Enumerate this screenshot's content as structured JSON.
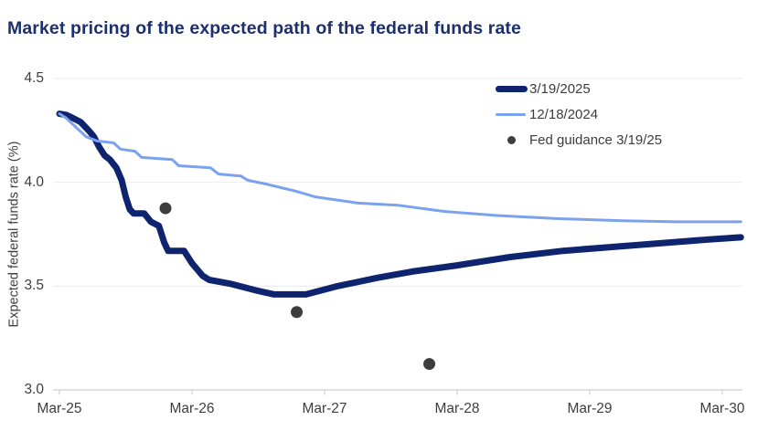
{
  "title": "Market pricing of the expected path of the federal funds rate",
  "colors": {
    "title_navy": "#1c2f6e",
    "series_dark_navy": "#0e246e",
    "series_light_blue": "#7aa2ee",
    "guidance_dot_gray": "#3d3d3d",
    "tick_text": "#3d3d3d",
    "gridline": "#ebebeb",
    "axis_line": "#cfcfcf",
    "background": "#ffffff"
  },
  "chart_data": {
    "type": "line",
    "title": "Market pricing of the expected path of the federal funds rate",
    "xlabel": "",
    "ylabel": "Expected federal funds rate (%)",
    "ylim": [
      3.0,
      4.5
    ],
    "x_unit": "years since Mar-2025",
    "grid": "horizontal gridlines at each y tick, light gray",
    "legend_position": "top-right inside plot area",
    "x_axis": {
      "ticks": [
        {
          "t": 0,
          "label": "Mar-25"
        },
        {
          "t": 1,
          "label": "Mar-26"
        },
        {
          "t": 2,
          "label": "Mar-27"
        },
        {
          "t": 3,
          "label": "Mar-28"
        },
        {
          "t": 4,
          "label": "Mar-29"
        },
        {
          "t": 5,
          "label": "Mar-30"
        }
      ]
    },
    "y_axis": {
      "ticks": [
        {
          "v": 4.5,
          "label": "4.5"
        },
        {
          "v": 4.0,
          "label": "4.0"
        },
        {
          "v": 3.5,
          "label": "3.5"
        },
        {
          "v": 3.0,
          "label": "3.0"
        }
      ]
    },
    "series": [
      {
        "name": "3/19/2025",
        "color": "#0e246e",
        "stroke_width": 7,
        "points": [
          [
            0,
            4.33
          ],
          [
            0.05,
            4.325
          ],
          [
            0.1,
            4.31
          ],
          [
            0.16,
            4.29
          ],
          [
            0.22,
            4.25
          ],
          [
            0.26,
            4.22
          ],
          [
            0.3,
            4.17
          ],
          [
            0.34,
            4.13
          ],
          [
            0.38,
            4.11
          ],
          [
            0.43,
            4.07
          ],
          [
            0.47,
            4.01
          ],
          [
            0.5,
            3.93
          ],
          [
            0.53,
            3.87
          ],
          [
            0.56,
            3.85
          ],
          [
            0.64,
            3.85
          ],
          [
            0.69,
            3.81
          ],
          [
            0.75,
            3.79
          ],
          [
            0.79,
            3.71
          ],
          [
            0.82,
            3.67
          ],
          [
            0.94,
            3.67
          ],
          [
            1.0,
            3.61
          ],
          [
            1.04,
            3.58
          ],
          [
            1.08,
            3.55
          ],
          [
            1.13,
            3.53
          ],
          [
            1.3,
            3.51
          ],
          [
            1.48,
            3.48
          ],
          [
            1.62,
            3.46
          ],
          [
            1.86,
            3.46
          ],
          [
            2.1,
            3.5
          ],
          [
            2.4,
            3.54
          ],
          [
            2.66,
            3.57
          ],
          [
            3.0,
            3.6
          ],
          [
            3.4,
            3.64
          ],
          [
            3.8,
            3.67
          ],
          [
            4.2,
            3.69
          ],
          [
            4.6,
            3.71
          ],
          [
            4.9,
            3.725
          ],
          [
            5.14,
            3.735
          ]
        ]
      },
      {
        "name": "12/18/2024",
        "color": "#7aa2ee",
        "stroke_width": 3,
        "points": [
          [
            0,
            4.33
          ],
          [
            0.05,
            4.31
          ],
          [
            0.1,
            4.28
          ],
          [
            0.15,
            4.25
          ],
          [
            0.2,
            4.22
          ],
          [
            0.24,
            4.21
          ],
          [
            0.28,
            4.2
          ],
          [
            0.41,
            4.19
          ],
          [
            0.46,
            4.16
          ],
          [
            0.57,
            4.15
          ],
          [
            0.62,
            4.12
          ],
          [
            0.85,
            4.11
          ],
          [
            0.9,
            4.08
          ],
          [
            1.14,
            4.07
          ],
          [
            1.2,
            4.04
          ],
          [
            1.37,
            4.03
          ],
          [
            1.42,
            4.01
          ],
          [
            1.57,
            3.99
          ],
          [
            1.7,
            3.97
          ],
          [
            1.77,
            3.96
          ],
          [
            1.93,
            3.93
          ],
          [
            2.25,
            3.9
          ],
          [
            2.55,
            3.89
          ],
          [
            2.9,
            3.86
          ],
          [
            3.3,
            3.84
          ],
          [
            3.75,
            3.825
          ],
          [
            4.25,
            3.815
          ],
          [
            4.65,
            3.81
          ],
          [
            5.14,
            3.81
          ]
        ]
      }
    ],
    "scatter": {
      "name": "Fed guidance 3/19/25",
      "color": "#3d3d3d",
      "radius": 6.5,
      "points": [
        [
          0.8,
          3.875
        ],
        [
          1.79,
          3.375
        ],
        [
          2.79,
          3.125
        ]
      ]
    }
  }
}
